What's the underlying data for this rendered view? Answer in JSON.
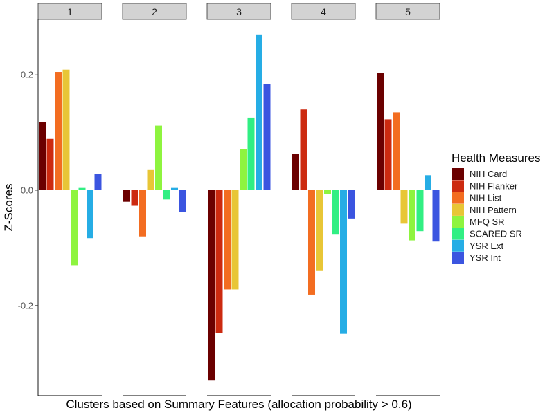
{
  "chart_data": {
    "type": "bar",
    "facets": [
      "1",
      "2",
      "3",
      "4",
      "5"
    ],
    "xlabel": "Clusters based on Summary Features (allocation probability > 0.6)",
    "ylabel": "Z-Scores",
    "ylim": [
      -0.33,
      0.3
    ],
    "yticks": [
      {
        "value": 0.2,
        "label": "0.2"
      },
      {
        "value": 0.0,
        "label": "0.0"
      },
      {
        "value": -0.2,
        "label": "-0.2"
      }
    ],
    "grid": false,
    "legend_position": "right",
    "legend_title": "Health Measures",
    "series": [
      {
        "name": "NIH Card",
        "color": "#6b0000",
        "values": [
          0.118,
          -0.02,
          -0.33,
          0.063,
          0.203
        ]
      },
      {
        "name": "NIH Flanker",
        "color": "#cc2a10",
        "values": [
          0.089,
          -0.027,
          -0.248,
          0.14,
          0.123
        ]
      },
      {
        "name": "NIH List",
        "color": "#f36d21",
        "values": [
          0.205,
          -0.08,
          -0.172,
          -0.181,
          0.135
        ]
      },
      {
        "name": "NIH Pattern",
        "color": "#e8c636",
        "values": [
          0.209,
          0.035,
          -0.172,
          -0.14,
          -0.058
        ]
      },
      {
        "name": "MFQ SR",
        "color": "#8ef43f",
        "values": [
          -0.13,
          0.112,
          0.071,
          -0.007,
          -0.087
        ]
      },
      {
        "name": "SCARED SR",
        "color": "#31ef83",
        "values": [
          0.004,
          -0.016,
          0.126,
          -0.077,
          -0.071
        ]
      },
      {
        "name": "YSR Ext",
        "color": "#26ade5",
        "values": [
          -0.083,
          0.004,
          0.27,
          -0.249,
          0.026
        ]
      },
      {
        "name": "YSR Int",
        "color": "#3b55e0",
        "values": [
          0.028,
          -0.038,
          0.184,
          -0.049,
          -0.089
        ]
      }
    ]
  }
}
